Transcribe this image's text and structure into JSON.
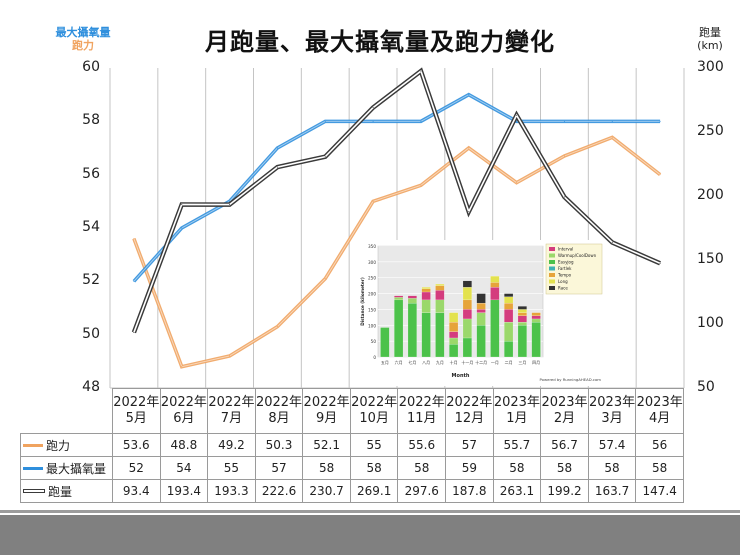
{
  "title": "月跑量、最大攝氧量及跑力變化",
  "axis_left_label": [
    "最大攝氧量",
    "跑力"
  ],
  "axis_right_label": [
    "跑量",
    "(km)"
  ],
  "colors": {
    "pace": "#f0a35f",
    "vo2": "#2f8fdd",
    "volume": "#3a3a3a",
    "left_label_top": "#2f8fdd",
    "left_label_bottom": "#f0a35f"
  },
  "chart_data": {
    "type": "line",
    "title": "月跑量、最大攝氧量及跑力變化",
    "categories": [
      [
        "2022年",
        "5月"
      ],
      [
        "2022年",
        "6月"
      ],
      [
        "2022年",
        "7月"
      ],
      [
        "2022年",
        "8月"
      ],
      [
        "2022年",
        "9月"
      ],
      [
        "2022年",
        "10月"
      ],
      [
        "2022年",
        "11月"
      ],
      [
        "2022年",
        "12月"
      ],
      [
        "2023年",
        "1月"
      ],
      [
        "2023年",
        "2月"
      ],
      [
        "2023年",
        "3月"
      ],
      [
        "2023年",
        "4月"
      ]
    ],
    "y_left": {
      "range": [
        48,
        60
      ],
      "ticks": [
        "48",
        "50",
        "52",
        "54",
        "56",
        "58",
        "60"
      ]
    },
    "y_right": {
      "range": [
        50,
        300
      ],
      "ticks": [
        "50",
        "100",
        "150",
        "200",
        "250",
        "300"
      ]
    },
    "grid": "vertical",
    "series": [
      {
        "name": "跑力",
        "axis": "left",
        "values": [
          53.6,
          48.8,
          49.2,
          50.3,
          52.1,
          55,
          55.6,
          57,
          55.7,
          56.7,
          57.4,
          56
        ],
        "labels": [
          "53.6",
          "48.8",
          "49.2",
          "50.3",
          "52.1",
          "55",
          "55.6",
          "57",
          "55.7",
          "56.7",
          "57.4",
          "56"
        ]
      },
      {
        "name": "最大攝氧量",
        "axis": "left",
        "values": [
          52,
          54,
          55,
          57,
          58,
          58,
          58,
          59,
          58,
          58,
          58,
          58
        ],
        "labels": [
          "52",
          "54",
          "55",
          "57",
          "58",
          "58",
          "58",
          "59",
          "58",
          "58",
          "58",
          "58"
        ]
      },
      {
        "name": "跑量",
        "axis": "right",
        "values": [
          93.4,
          193.4,
          193.3,
          222.6,
          230.7,
          269.1,
          297.6,
          187.8,
          263.1,
          199.2,
          163.7,
          147.4
        ],
        "labels": [
          "93.4",
          "193.4",
          "193.3",
          "222.6",
          "230.7",
          "269.1",
          "297.6",
          "187.8",
          "263.1",
          "199.2",
          "163.7",
          "147.4"
        ]
      }
    ],
    "inset": {
      "type": "bar",
      "stacked": true,
      "xlabel": "Month",
      "ylabel": "Distance (kilometer)",
      "ylim": [
        0,
        350
      ],
      "yticks": [
        "0",
        "50",
        "100",
        "150",
        "200",
        "250",
        "300",
        "350"
      ],
      "categories": [
        "五月",
        "六月",
        "七月",
        "八月",
        "九月",
        "十月",
        "十一月",
        "十二月",
        "一月",
        "二月",
        "三月",
        "四月"
      ],
      "legend": [
        "Interval",
        "Warmup/CoolDown",
        "Easyjog",
        "Fartlek",
        "Tempo",
        "Long",
        "Race"
      ],
      "legend_colors": [
        "#d43c7e",
        "#9bd86b",
        "#4cc24a",
        "#3fb2b2",
        "#e6a43a",
        "#e3e24e",
        "#333333"
      ],
      "footnote": "Powered by RunningAHEAD.com",
      "series": [
        {
          "name": "Easyjog",
          "values": [
            93,
            180,
            170,
            140,
            140,
            40,
            60,
            100,
            180,
            50,
            100,
            110
          ]
        },
        {
          "name": "Warmup/CoolDown",
          "values": [
            0,
            8,
            15,
            40,
            40,
            20,
            60,
            40,
            0,
            60,
            10,
            10
          ]
        },
        {
          "name": "Interval",
          "values": [
            0,
            5,
            8,
            25,
            30,
            20,
            30,
            10,
            40,
            40,
            20,
            10
          ]
        },
        {
          "name": "Tempo",
          "values": [
            0,
            0,
            0,
            10,
            15,
            30,
            30,
            20,
            15,
            20,
            10,
            10
          ]
        },
        {
          "name": "Long",
          "values": [
            0,
            0,
            0,
            5,
            5,
            30,
            40,
            0,
            20,
            20,
            10,
            0
          ]
        },
        {
          "name": "Race",
          "values": [
            0,
            0,
            0,
            0,
            0,
            0,
            20,
            30,
            0,
            10,
            10,
            0
          ]
        }
      ]
    }
  }
}
